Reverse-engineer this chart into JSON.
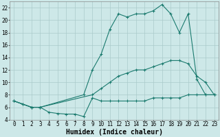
{
  "background_color": "#cde8e8",
  "grid_color": "#aacaca",
  "line_color": "#1a7a6e",
  "line_width": 0.8,
  "marker": "+",
  "marker_size": 3,
  "marker_lw": 0.8,
  "xlabel": "Humidex (Indice chaleur)",
  "xlabel_fontsize": 7,
  "tick_fontsize": 5.5,
  "xlim": [
    -0.5,
    23.5
  ],
  "ylim": [
    4,
    23
  ],
  "yticks": [
    4,
    6,
    8,
    10,
    12,
    14,
    16,
    18,
    20,
    22
  ],
  "xticks": [
    0,
    1,
    2,
    3,
    4,
    5,
    6,
    7,
    8,
    9,
    10,
    11,
    12,
    13,
    14,
    15,
    16,
    17,
    18,
    19,
    20,
    21,
    22,
    23
  ],
  "series1_x": [
    0,
    1,
    2,
    3,
    4,
    5,
    6,
    7,
    8,
    9,
    10,
    11,
    12,
    13,
    14,
    15,
    16,
    17,
    18,
    19,
    20,
    21,
    22,
    23
  ],
  "series1_y": [
    7,
    6.5,
    6,
    6,
    5.2,
    5.0,
    4.9,
    4.9,
    4.5,
    7.5,
    7,
    7,
    7,
    7,
    7,
    7,
    7.5,
    7.5,
    7.5,
    7.5,
    8,
    8,
    8,
    8
  ],
  "series2_x": [
    0,
    1,
    2,
    3,
    9,
    10,
    11,
    12,
    13,
    14,
    15,
    16,
    17,
    18,
    19,
    20,
    21,
    22,
    23
  ],
  "series2_y": [
    7,
    6.5,
    6,
    6,
    8,
    9,
    10,
    11,
    11.5,
    12,
    12,
    12.5,
    13,
    13.5,
    13.5,
    13,
    11,
    10,
    8
  ],
  "series3_x": [
    0,
    2,
    3,
    8,
    9,
    10,
    11,
    12,
    13,
    14,
    15,
    16,
    17,
    18,
    19,
    20,
    21,
    22,
    23
  ],
  "series3_y": [
    7,
    6,
    6,
    8,
    12,
    14.5,
    18.5,
    21,
    20.5,
    21,
    21,
    21.5,
    22.5,
    21,
    18,
    21,
    10.5,
    8,
    8
  ]
}
